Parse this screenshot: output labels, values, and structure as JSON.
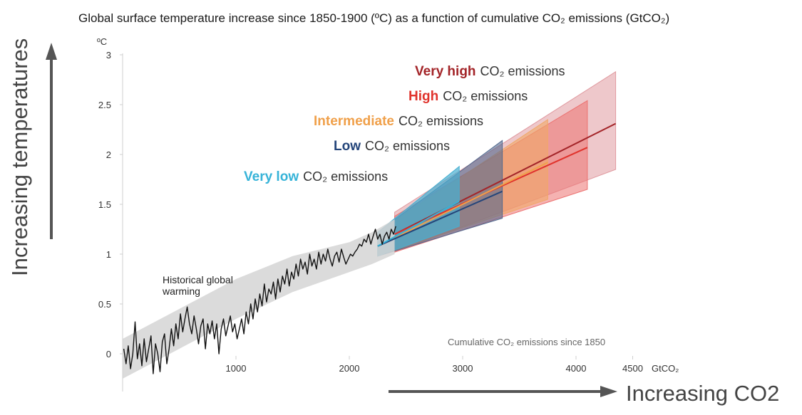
{
  "chart_data": {
    "type": "line",
    "title": "Global surface temperature increase since 1850-1900 (ºC) as a function of cumulative CO₂ emissions (GtCO₂)",
    "ylabel_unit": "ºC",
    "xlabel_unit": "GtCO₂",
    "note": "Cumulative CO₂ emissions since 1850",
    "y_axis_label": "Increasing temperatures",
    "x_axis_label": "Increasing CO2",
    "xlim": [
      -50,
      4550
    ],
    "ylim": [
      -0.35,
      3.0
    ],
    "x_ticks": [
      {
        "value": 1000,
        "label": "1000"
      },
      {
        "value": 2000,
        "label": "2000"
      },
      {
        "value": 3000,
        "label": "3000"
      },
      {
        "value": 4000,
        "label": "4000"
      },
      {
        "value": 4500,
        "label": "4500"
      }
    ],
    "y_ticks": [
      {
        "value": 0,
        "label": "0"
      },
      {
        "value": 0.5,
        "label": "0.5"
      },
      {
        "value": 1,
        "label": "1"
      },
      {
        "value": 1.5,
        "label": "1.5"
      },
      {
        "value": 2,
        "label": "2"
      },
      {
        "value": 2.5,
        "label": "2.5"
      },
      {
        "value": 3,
        "label": "3"
      }
    ],
    "historical": {
      "label_line1": "Historical global",
      "label_line2": "warming",
      "color": "#111111",
      "band_color": "#d5d5d5",
      "x": [
        10,
        30,
        50,
        70,
        90,
        110,
        130,
        150,
        170,
        190,
        210,
        230,
        250,
        270,
        290,
        310,
        330,
        350,
        370,
        390,
        410,
        430,
        450,
        470,
        490,
        510,
        530,
        550,
        570,
        590,
        610,
        630,
        650,
        670,
        690,
        710,
        730,
        750,
        770,
        790,
        810,
        830,
        850,
        870,
        890,
        910,
        930,
        950,
        970,
        990,
        1010,
        1030,
        1050,
        1070,
        1090,
        1110,
        1130,
        1150,
        1170,
        1190,
        1210,
        1230,
        1250,
        1270,
        1290,
        1310,
        1330,
        1350,
        1370,
        1390,
        1410,
        1430,
        1450,
        1470,
        1490,
        1510,
        1530,
        1550,
        1570,
        1590,
        1610,
        1630,
        1650,
        1670,
        1690,
        1710,
        1730,
        1750,
        1770,
        1790,
        1810,
        1830,
        1850,
        1870,
        1890,
        1910,
        1930,
        1950,
        1970,
        1990,
        2010,
        2030,
        2050,
        2070,
        2090,
        2110,
        2130,
        2150,
        2170,
        2190,
        2210,
        2230,
        2250,
        2270,
        2290,
        2310,
        2330,
        2350,
        2370,
        2390,
        2410
      ],
      "y": [
        0.05,
        -0.1,
        0.08,
        -0.15,
        0.0,
        0.32,
        -0.05,
        0.1,
        -0.12,
        0.15,
        -0.08,
        0.05,
        0.18,
        -0.2,
        0.1,
        0.0,
        -0.18,
        0.12,
        0.2,
        -0.1,
        0.05,
        0.25,
        0.08,
        0.3,
        0.15,
        0.4,
        0.22,
        0.35,
        0.47,
        0.3,
        0.2,
        0.38,
        0.25,
        0.1,
        0.28,
        0.35,
        0.05,
        0.3,
        0.2,
        0.33,
        0.15,
        0.3,
        0.0,
        0.25,
        0.35,
        0.18,
        0.28,
        0.38,
        0.22,
        0.3,
        0.15,
        0.25,
        0.35,
        0.2,
        0.42,
        0.3,
        0.5,
        0.35,
        0.55,
        0.42,
        0.6,
        0.48,
        0.7,
        0.52,
        0.65,
        0.6,
        0.72,
        0.55,
        0.75,
        0.62,
        0.78,
        0.7,
        0.85,
        0.68,
        0.82,
        0.75,
        0.9,
        0.78,
        0.95,
        0.85,
        0.92,
        0.8,
        1.0,
        0.88,
        0.95,
        0.85,
        1.02,
        0.9,
        1.0,
        0.93,
        1.05,
        0.95,
        0.88,
        0.98,
        1.02,
        0.92,
        1.05,
        0.97,
        0.9,
        0.95,
        1.0,
        0.98,
        1.02,
        1.05,
        1.1,
        1.08,
        1.15,
        1.12,
        1.2,
        1.1,
        1.18,
        1.25,
        1.15,
        1.2,
        1.1,
        1.18,
        1.22,
        1.15,
        1.25,
        1.2,
        1.28
      ],
      "band_x": [
        0,
        500,
        1000,
        1500,
        2000,
        2200,
        2400
      ],
      "band_low": [
        -0.25,
        0.05,
        0.35,
        0.62,
        0.82,
        0.9,
        1.0
      ],
      "band_high": [
        0.15,
        0.45,
        0.75,
        0.98,
        1.12,
        1.22,
        1.35
      ]
    },
    "series": [
      {
        "name": "Very high",
        "rest": "CO₂ emissions",
        "color": "#a32428",
        "band_color": "#e09aa0",
        "band_opacity": 0.55,
        "x": [
          2400,
          4350
        ],
        "y": [
          1.2,
          2.31
        ],
        "band_x": [
          2400,
          4350
        ],
        "band_low": [
          1.02,
          1.85
        ],
        "band_high": [
          1.42,
          2.83
        ]
      },
      {
        "name": "High",
        "rest": "CO₂ emissions",
        "color": "#e0332c",
        "band_color": "#ec7271",
        "band_opacity": 0.55,
        "x": [
          2400,
          4100
        ],
        "y": [
          1.2,
          2.07
        ],
        "band_x": [
          2400,
          4100
        ],
        "band_low": [
          1.02,
          1.65
        ],
        "band_high": [
          1.38,
          2.54
        ]
      },
      {
        "name": "Intermediate",
        "rest": "CO₂ emissions",
        "color": "#f0a04a",
        "band_color": "#f0a868",
        "band_opacity": 0.6,
        "x": [
          2250,
          3750
        ],
        "y": [
          1.08,
          1.92
        ],
        "band_x": [
          2250,
          3750
        ],
        "band_low": [
          0.98,
          1.55
        ],
        "band_high": [
          1.22,
          2.35
        ]
      },
      {
        "name": "Low",
        "rest": "CO₂ emissions",
        "color": "#24457a",
        "band_color": "#52688e",
        "band_opacity": 0.6,
        "x": [
          2250,
          3350
        ],
        "y": [
          1.08,
          1.63
        ],
        "band_x": [
          2250,
          3350
        ],
        "band_low": [
          0.98,
          1.36
        ],
        "band_high": [
          1.22,
          2.14
        ]
      },
      {
        "name": "Very low",
        "rest": "CO₂ emissions",
        "color": "#36b3d8",
        "band_color": "#47afd1",
        "band_opacity": 0.7,
        "x": [
          2250,
          2970
        ],
        "y": [
          1.08,
          1.53
        ],
        "band_x": [
          2250,
          2970
        ],
        "band_low": [
          0.98,
          1.28
        ],
        "band_high": [
          1.22,
          1.88
        ]
      }
    ]
  }
}
